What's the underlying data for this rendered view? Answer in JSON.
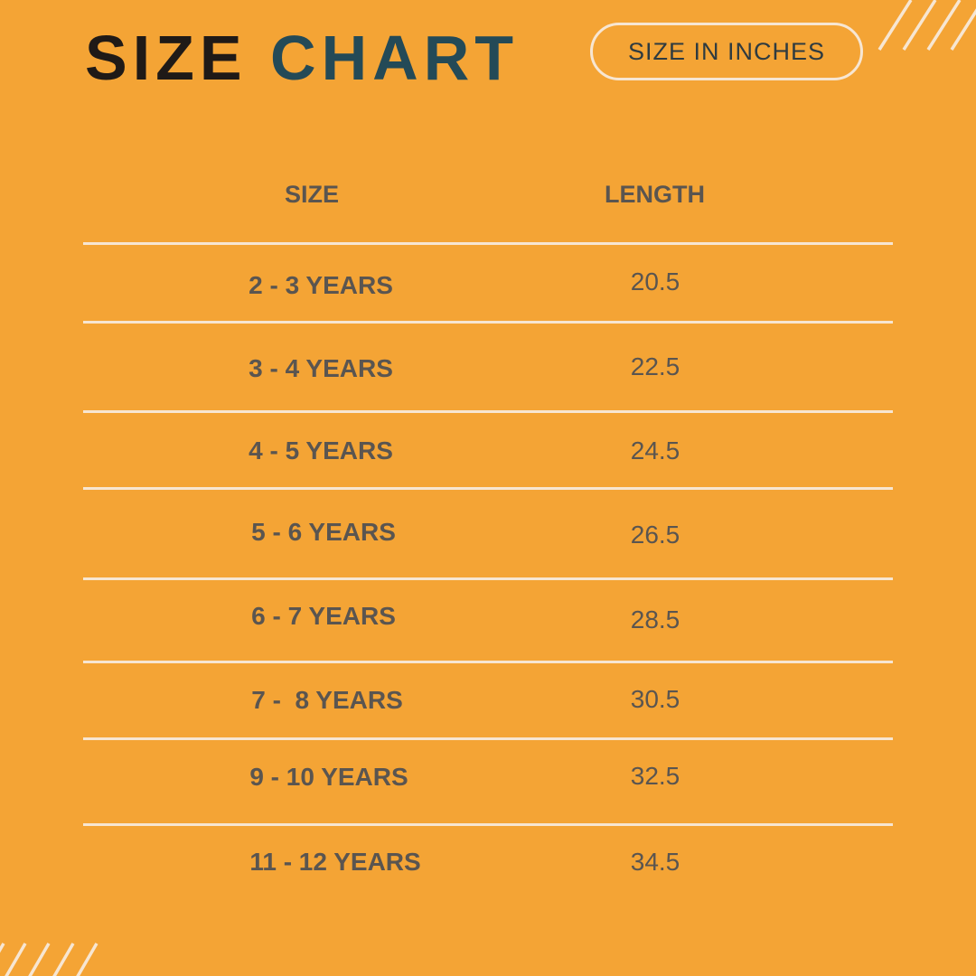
{
  "title": {
    "word1": "SIZE",
    "word2": "CHART"
  },
  "unit_badge": "SIZE IN INCHES",
  "columns": [
    "SIZE",
    "LENGTH"
  ],
  "rows": [
    {
      "size": "2 - 3 YEARS",
      "length": "20.5"
    },
    {
      "size": "3 - 4 YEARS",
      "length": "22.5"
    },
    {
      "size": "4 - 5 YEARS",
      "length": "24.5"
    },
    {
      "size": "5 - 6 YEARS",
      "length": "26.5"
    },
    {
      "size": "6 - 7 YEARS",
      "length": "28.5"
    },
    {
      "size": "7 -  8 YEARS",
      "length": "30.5"
    },
    {
      "size": "9 - 10 YEARS",
      "length": "32.5"
    },
    {
      "size": "11 - 12 YEARS",
      "length": "34.5"
    }
  ],
  "colors": {
    "background": "#F4A435",
    "accent": "#244a57",
    "text": "#5a5550",
    "lines": "#f7e6d2"
  }
}
